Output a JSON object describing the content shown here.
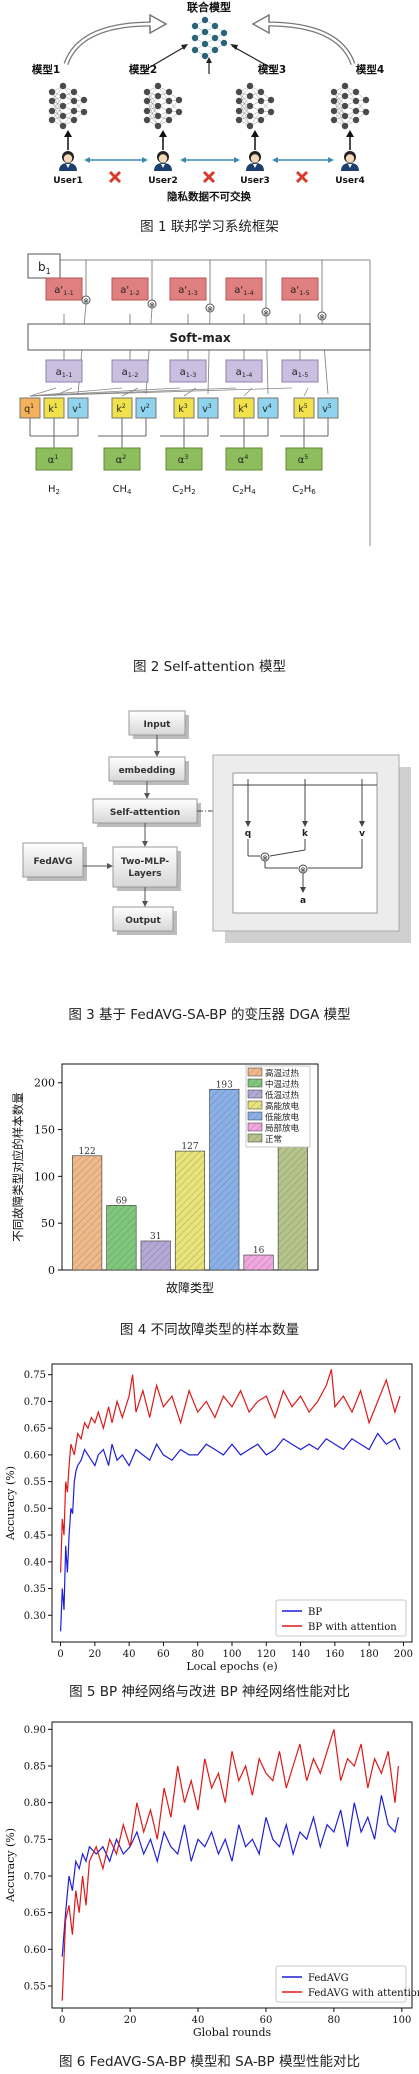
{
  "fig1": {
    "top_label": "联合模型",
    "models": [
      "模型1",
      "模型2",
      "模型3",
      "模型4"
    ],
    "users": [
      "User1",
      "User2",
      "User3",
      "User4"
    ],
    "bottom_label": "隐私数据不可交换",
    "caption": "图 1  联邦学习系统框架"
  },
  "fig2": {
    "b_label": "b",
    "b_sub": "1",
    "softmax": "Soft-max",
    "a_prime": [
      {
        "base": "a'",
        "sub": "1-1"
      },
      {
        "base": "a'",
        "sub": "1-2"
      },
      {
        "base": "a'",
        "sub": "1-3"
      },
      {
        "base": "a'",
        "sub": "1-4"
      },
      {
        "base": "a'",
        "sub": "1-5"
      }
    ],
    "a": [
      {
        "base": "a",
        "sub": "1-1"
      },
      {
        "base": "a",
        "sub": "1-2"
      },
      {
        "base": "a",
        "sub": "1-3"
      },
      {
        "base": "a",
        "sub": "1-4"
      },
      {
        "base": "a",
        "sub": "1-5"
      }
    ],
    "qkv": [
      {
        "q": "q",
        "k": "k",
        "v": "v",
        "i": "1"
      },
      {
        "q": "",
        "k": "k",
        "v": "v",
        "i": "2"
      },
      {
        "q": "",
        "k": "k",
        "v": "v",
        "i": "3"
      },
      {
        "q": "",
        "k": "k",
        "v": "v",
        "i": "4"
      },
      {
        "q": "",
        "k": "k",
        "v": "v",
        "i": "5"
      }
    ],
    "alpha": [
      {
        "base": "α",
        "sup": "1"
      },
      {
        "base": "α",
        "sup": "2"
      },
      {
        "base": "α",
        "sup": "3"
      },
      {
        "base": "α",
        "sup": "4"
      },
      {
        "base": "α",
        "sup": "5"
      }
    ],
    "gases": [
      {
        "base": "H",
        "sub": "2",
        "tail": ""
      },
      {
        "base": "CH",
        "sub": "4",
        "tail": ""
      },
      {
        "base": "C",
        "sub": "2",
        "tail": "H",
        "sub2": "2"
      },
      {
        "base": "C",
        "sub": "2",
        "tail": "H",
        "sub2": "4"
      },
      {
        "base": "C",
        "sub": "2",
        "tail": "H",
        "sub2": "6"
      }
    ],
    "caption": "图 2  Self-attention 模型"
  },
  "fig3": {
    "boxes": {
      "input": "Input",
      "embedding": "embedding",
      "self_attention": "Self-attention",
      "fedavg": "FedAVG",
      "mlp_line1": "Two-MLP-",
      "mlp_line2": "Layers",
      "output": "Output"
    },
    "inner": {
      "q": "q",
      "k": "k",
      "v": "v",
      "a": "a"
    },
    "caption": "图 3  基于 FedAVG-SA-BP 的变压器 DGA 模型"
  },
  "fig4": {
    "caption": "图 4  不同故障类型的样本数量",
    "colors": [
      "#f0b98a",
      "#7fc77a",
      "#b4a9d6",
      "#e8e47a",
      "#8ab0e8",
      "#f2a6e0",
      "#b6c48a"
    ]
  },
  "fig5": {
    "caption": "图 5  BP 神经网络与改进 BP 神经网络性能对比",
    "colors": {
      "BP": "#1f1fd8",
      "BP with attention": "#e01818"
    }
  },
  "fig6": {
    "caption": "图 6  FedAVG-SA-BP 模型和 SA-BP 模型性能对比",
    "colors": {
      "FedAVG": "#1f1fd8",
      "FedAVG with attention": "#e01818"
    }
  },
  "chart_data": [
    {
      "type": "bar",
      "categories": [
        "高温过热",
        "中温过热",
        "低温过热",
        "高能放电",
        "低能放电",
        "局部放电",
        "正常"
      ],
      "values": [
        122,
        69,
        31,
        127,
        193,
        16,
        137
      ],
      "xlabel": "故障类型",
      "ylabel": "不同故障类型对应的样本数量",
      "ylim": [
        0,
        220
      ],
      "yticks": [
        0,
        50,
        100,
        150,
        200
      ],
      "legend": "top-right",
      "data_labels": true
    },
    {
      "type": "line",
      "xlabel": "Local epochs (e)",
      "ylabel": "Accuracy (%)",
      "xlim": [
        -5,
        205
      ],
      "ylim": [
        0.25,
        0.77
      ],
      "xticks": [
        0,
        20,
        40,
        60,
        80,
        100,
        120,
        140,
        160,
        180,
        200
      ],
      "yticks": [
        0.3,
        0.35,
        0.4,
        0.45,
        0.5,
        0.55,
        0.6,
        0.65,
        0.7,
        0.75
      ],
      "legend": "bottom-right",
      "series": [
        {
          "name": "BP",
          "x": [
            0,
            1,
            2,
            3,
            4,
            5,
            6,
            7,
            8,
            9,
            10,
            12,
            14,
            16,
            18,
            20,
            22,
            25,
            28,
            30,
            33,
            36,
            40,
            44,
            48,
            52,
            56,
            60,
            65,
            70,
            75,
            80,
            85,
            90,
            95,
            100,
            105,
            110,
            115,
            120,
            125,
            130,
            135,
            140,
            145,
            150,
            155,
            160,
            165,
            170,
            175,
            180,
            185,
            190,
            195,
            198
          ],
          "values": [
            0.27,
            0.35,
            0.31,
            0.43,
            0.38,
            0.45,
            0.5,
            0.49,
            0.55,
            0.57,
            0.58,
            0.59,
            0.61,
            0.6,
            0.59,
            0.58,
            0.6,
            0.61,
            0.58,
            0.62,
            0.59,
            0.6,
            0.58,
            0.61,
            0.6,
            0.59,
            0.62,
            0.6,
            0.59,
            0.61,
            0.6,
            0.6,
            0.62,
            0.61,
            0.6,
            0.62,
            0.6,
            0.61,
            0.62,
            0.6,
            0.61,
            0.63,
            0.62,
            0.61,
            0.62,
            0.61,
            0.63,
            0.62,
            0.61,
            0.63,
            0.62,
            0.61,
            0.64,
            0.62,
            0.63,
            0.61
          ]
        },
        {
          "name": "BP with attention",
          "x": [
            0,
            1,
            2,
            3,
            4,
            5,
            6,
            8,
            10,
            12,
            14,
            16,
            18,
            20,
            22,
            25,
            28,
            30,
            33,
            36,
            40,
            42,
            44,
            48,
            52,
            56,
            60,
            65,
            70,
            75,
            80,
            85,
            90,
            95,
            100,
            105,
            110,
            115,
            120,
            125,
            130,
            135,
            140,
            145,
            150,
            155,
            158,
            160,
            165,
            170,
            175,
            180,
            185,
            190,
            195,
            198
          ],
          "values": [
            0.38,
            0.48,
            0.45,
            0.55,
            0.53,
            0.58,
            0.62,
            0.6,
            0.64,
            0.63,
            0.66,
            0.65,
            0.67,
            0.66,
            0.68,
            0.65,
            0.69,
            0.66,
            0.7,
            0.67,
            0.71,
            0.75,
            0.68,
            0.72,
            0.67,
            0.73,
            0.69,
            0.71,
            0.66,
            0.72,
            0.68,
            0.7,
            0.67,
            0.71,
            0.69,
            0.72,
            0.68,
            0.7,
            0.71,
            0.67,
            0.72,
            0.69,
            0.71,
            0.68,
            0.7,
            0.73,
            0.76,
            0.69,
            0.71,
            0.68,
            0.72,
            0.66,
            0.7,
            0.74,
            0.68,
            0.71
          ]
        }
      ]
    },
    {
      "type": "line",
      "xlabel": "Global rounds",
      "ylabel": "Accuracy (%)",
      "xlim": [
        -3,
        103
      ],
      "ylim": [
        0.52,
        0.91
      ],
      "xticks": [
        0,
        20,
        40,
        60,
        80,
        100
      ],
      "yticks": [
        0.55,
        0.6,
        0.65,
        0.7,
        0.75,
        0.8,
        0.85,
        0.9
      ],
      "legend": "bottom-right",
      "series": [
        {
          "name": "FedAVG",
          "x": [
            0,
            1,
            2,
            3,
            4,
            5,
            6,
            7,
            8,
            10,
            12,
            14,
            16,
            18,
            20,
            22,
            24,
            26,
            28,
            30,
            32,
            34,
            36,
            38,
            40,
            42,
            44,
            46,
            48,
            50,
            52,
            54,
            56,
            58,
            60,
            62,
            64,
            66,
            68,
            70,
            72,
            74,
            76,
            78,
            80,
            82,
            84,
            86,
            88,
            90,
            92,
            94,
            96,
            98,
            99
          ],
          "values": [
            0.59,
            0.65,
            0.7,
            0.68,
            0.72,
            0.71,
            0.73,
            0.72,
            0.74,
            0.73,
            0.74,
            0.72,
            0.75,
            0.73,
            0.74,
            0.76,
            0.73,
            0.75,
            0.72,
            0.76,
            0.74,
            0.73,
            0.77,
            0.72,
            0.75,
            0.74,
            0.76,
            0.73,
            0.75,
            0.72,
            0.77,
            0.74,
            0.75,
            0.73,
            0.78,
            0.75,
            0.74,
            0.77,
            0.73,
            0.76,
            0.75,
            0.78,
            0.74,
            0.77,
            0.76,
            0.79,
            0.74,
            0.8,
            0.76,
            0.78,
            0.75,
            0.81,
            0.77,
            0.76,
            0.78
          ]
        },
        {
          "name": "FedAVG with attention",
          "x": [
            0,
            1,
            2,
            3,
            4,
            5,
            6,
            7,
            8,
            10,
            12,
            14,
            16,
            18,
            20,
            22,
            24,
            26,
            28,
            30,
            32,
            34,
            36,
            38,
            40,
            42,
            44,
            46,
            48,
            50,
            52,
            54,
            56,
            58,
            60,
            62,
            64,
            66,
            68,
            70,
            72,
            74,
            76,
            78,
            80,
            82,
            84,
            86,
            88,
            90,
            92,
            94,
            96,
            98,
            99
          ],
          "values": [
            0.53,
            0.64,
            0.66,
            0.62,
            0.68,
            0.65,
            0.7,
            0.66,
            0.72,
            0.74,
            0.71,
            0.75,
            0.73,
            0.77,
            0.74,
            0.8,
            0.76,
            0.79,
            0.75,
            0.82,
            0.78,
            0.85,
            0.8,
            0.83,
            0.79,
            0.86,
            0.82,
            0.84,
            0.8,
            0.87,
            0.83,
            0.85,
            0.81,
            0.86,
            0.84,
            0.83,
            0.87,
            0.82,
            0.85,
            0.88,
            0.83,
            0.86,
            0.84,
            0.87,
            0.9,
            0.83,
            0.86,
            0.85,
            0.88,
            0.82,
            0.86,
            0.84,
            0.87,
            0.8,
            0.85
          ]
        }
      ]
    }
  ]
}
